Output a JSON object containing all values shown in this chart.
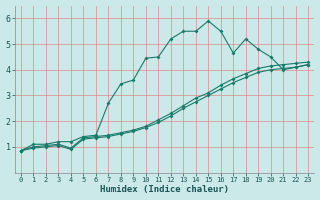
{
  "xlabel": "Humidex (Indice chaleur)",
  "ylabel": "",
  "xlim": [
    -0.5,
    23.5
  ],
  "ylim": [
    0,
    6.5
  ],
  "xticks": [
    0,
    1,
    2,
    3,
    4,
    5,
    6,
    7,
    8,
    9,
    10,
    11,
    12,
    13,
    14,
    15,
    16,
    17,
    18,
    19,
    20,
    21,
    22,
    23
  ],
  "yticks": [
    1,
    2,
    3,
    4,
    5,
    6
  ],
  "bg_color": "#cce9e9",
  "grid_color": "#e08888",
  "line_color": "#1a7a6a",
  "line1_x": [
    0,
    1,
    2,
    3,
    4,
    5,
    6,
    7,
    8,
    9,
    10,
    11,
    12,
    13,
    14,
    15,
    16,
    17,
    18,
    19,
    20,
    21,
    22,
    23
  ],
  "line1_y": [
    0.85,
    1.1,
    1.1,
    1.2,
    1.2,
    1.4,
    1.45,
    2.7,
    3.45,
    3.6,
    4.45,
    4.5,
    5.2,
    5.5,
    5.5,
    5.9,
    5.5,
    4.65,
    5.2,
    4.8,
    4.5,
    4.0,
    4.1,
    4.2
  ],
  "line2_x": [
    0,
    1,
    2,
    3,
    4,
    5,
    6,
    7,
    8,
    9,
    10,
    11,
    12,
    13,
    14,
    15,
    16,
    17,
    18,
    19,
    20,
    21,
    22,
    23
  ],
  "line2_y": [
    0.85,
    1.0,
    1.05,
    1.1,
    0.95,
    1.35,
    1.4,
    1.45,
    1.55,
    1.65,
    1.8,
    2.05,
    2.3,
    2.6,
    2.9,
    3.1,
    3.4,
    3.65,
    3.85,
    4.05,
    4.15,
    4.2,
    4.25,
    4.3
  ],
  "line3_x": [
    0,
    1,
    2,
    3,
    4,
    5,
    6,
    7,
    8,
    9,
    10,
    11,
    12,
    13,
    14,
    15,
    16,
    17,
    18,
    19,
    20,
    21,
    22,
    23
  ],
  "line3_y": [
    0.85,
    0.95,
    1.0,
    1.05,
    0.9,
    1.3,
    1.35,
    1.4,
    1.5,
    1.6,
    1.75,
    1.95,
    2.2,
    2.5,
    2.75,
    3.0,
    3.25,
    3.5,
    3.7,
    3.9,
    4.0,
    4.05,
    4.1,
    4.2
  ]
}
